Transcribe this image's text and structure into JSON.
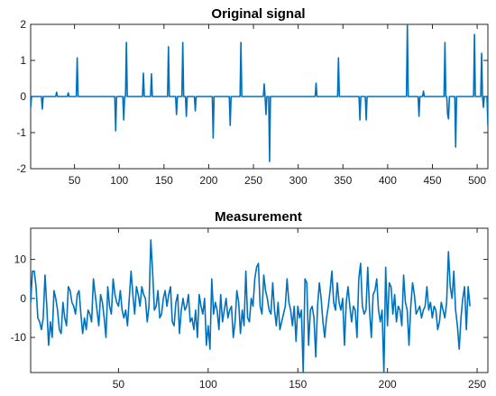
{
  "chart_data": [
    {
      "type": "line",
      "title": "Original signal",
      "xlabel": "",
      "ylabel": "",
      "xlim": [
        1,
        512
      ],
      "ylim": [
        -2,
        2
      ],
      "xticks": [
        50,
        100,
        150,
        200,
        250,
        300,
        350,
        400,
        450,
        500
      ],
      "yticks": [
        -2,
        -1,
        0,
        1,
        2
      ],
      "grid": false,
      "color": "#0072BD",
      "series": [
        {
          "style": "spikes",
          "n": 512,
          "spikes": [
            [
              1,
              -0.3
            ],
            [
              14,
              -0.35
            ],
            [
              30,
              0.12
            ],
            [
              43,
              0.1
            ],
            [
              53,
              1.07
            ],
            [
              96,
              -0.95
            ],
            [
              105,
              -0.65
            ],
            [
              108,
              1.5
            ],
            [
              127,
              0.65
            ],
            [
              136,
              0.63
            ],
            [
              155,
              1.38
            ],
            [
              164,
              -0.5
            ],
            [
              171,
              1.5
            ],
            [
              175,
              -0.55
            ],
            [
              185,
              -0.4
            ],
            [
              205,
              -1.15
            ],
            [
              224,
              -0.8
            ],
            [
              236,
              1.5
            ],
            [
              262,
              0.35
            ],
            [
              264,
              -0.5
            ],
            [
              268,
              -1.8
            ],
            [
              320,
              0.37
            ],
            [
              345,
              1.07
            ],
            [
              369,
              -0.65
            ],
            [
              376,
              -0.65
            ],
            [
              422,
              2.0
            ],
            [
              435,
              -0.55
            ],
            [
              440,
              0.15
            ],
            [
              464,
              1.5
            ],
            [
              467,
              -0.5
            ],
            [
              468,
              -0.62
            ],
            [
              476,
              -1.4
            ],
            [
              497,
              1.72
            ],
            [
              505,
              1.2
            ],
            [
              507,
              -0.3
            ],
            [
              512,
              -0.8
            ]
          ]
        }
      ]
    },
    {
      "type": "line",
      "title": "Measurement",
      "xlabel": "",
      "ylabel": "",
      "xlim": [
        1,
        256
      ],
      "ylim": [
        -19,
        18
      ],
      "xticks": [
        50,
        100,
        150,
        200,
        250
      ],
      "yticks": [
        -10,
        0,
        10
      ],
      "grid": false,
      "color": "#0072BD",
      "series": [
        {
          "style": "line",
          "values": [
            -1,
            7,
            7,
            3,
            -5,
            -6,
            -8,
            -5,
            6,
            -2,
            -12,
            -6,
            -10,
            2,
            0,
            -3,
            -8,
            -9,
            -1,
            -5,
            -7,
            3,
            2,
            -1,
            -2,
            -4,
            1,
            2,
            -4,
            -9,
            -5,
            -8,
            -3,
            -4,
            -6,
            5,
            1,
            -3,
            -7,
            1,
            -1,
            -5,
            -10,
            3,
            -2,
            -4,
            5,
            1,
            -1,
            -2,
            2,
            -3,
            -5,
            -3,
            -7,
            0,
            7,
            1,
            -4,
            3,
            1,
            -2,
            3,
            1,
            0,
            -6,
            -2,
            15,
            7,
            -3,
            -2,
            2,
            -5,
            -4,
            0,
            2,
            -2,
            1,
            3,
            -6,
            -7,
            -1,
            1,
            -9,
            -3,
            0,
            -3,
            -2,
            1,
            -6,
            -5,
            -8,
            -3,
            -10,
            1,
            -2,
            -4,
            0,
            -12,
            -7,
            -13,
            5,
            -4,
            -1,
            -3,
            -8,
            1,
            -6,
            -3,
            0,
            -5,
            -3,
            -2,
            -10,
            -6,
            2,
            -1,
            -9,
            -3,
            -7,
            7,
            -5,
            -6,
            0,
            -2,
            5,
            8,
            9,
            -2,
            -4,
            6,
            2,
            0,
            -3,
            -4,
            4,
            -3,
            -7,
            -1,
            -8,
            -6,
            -4,
            -2,
            5,
            -1,
            -3,
            -7,
            -2,
            -11,
            -2,
            -5,
            -3,
            -19,
            5,
            4,
            -12,
            -3,
            -2,
            -5,
            -15,
            -2,
            4,
            0,
            -6,
            -10,
            -5,
            -2,
            2,
            7,
            -1,
            -3,
            4,
            -1,
            -3,
            0,
            -12,
            -1,
            3,
            -2,
            -6,
            -2,
            -3,
            -10,
            5,
            9,
            -2,
            -4,
            -3,
            8,
            -3,
            -10,
            1,
            2,
            5,
            -3,
            -6,
            -3,
            -19,
            8,
            -7,
            4,
            3,
            -4,
            1,
            -6,
            -2,
            -3,
            -7,
            6,
            -1,
            -3,
            -12,
            -2,
            4,
            1,
            -4,
            -3,
            -2,
            -5,
            -3,
            -2,
            3,
            -3,
            -1,
            -5,
            -2,
            -3,
            -8,
            -6,
            -1,
            -3,
            -5,
            -1,
            12,
            3,
            0,
            7,
            -3,
            -7,
            -13,
            -5,
            0,
            3,
            -8,
            3,
            -2
          ]
        }
      ]
    }
  ]
}
